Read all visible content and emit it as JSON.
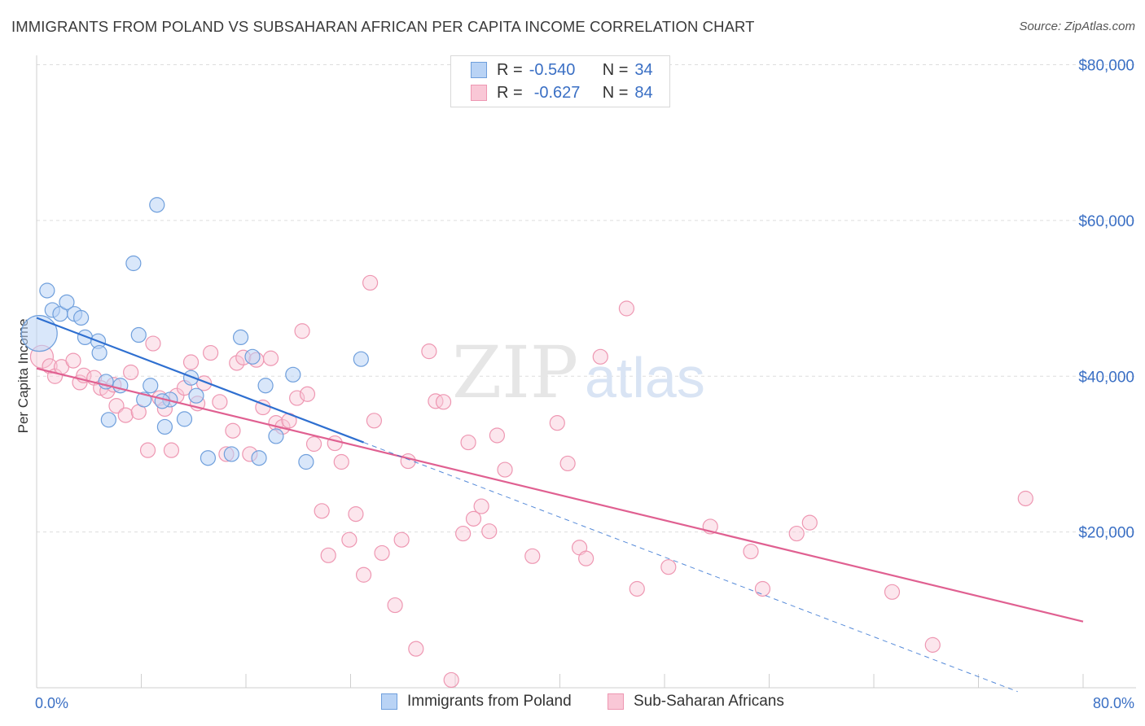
{
  "header": {
    "title": "IMMIGRANTS FROM POLAND VS SUBSAHARAN AFRICAN PER CAPITA INCOME CORRELATION CHART",
    "source": "Source: ZipAtlas.com"
  },
  "legend_top": {
    "rows": [
      {
        "r_label": "R =",
        "r_value": "-0.540",
        "n_label": "N =",
        "n_value": "34"
      },
      {
        "r_label": "R =",
        "r_value": "-0.627",
        "n_label": "N =",
        "n_value": "84"
      }
    ]
  },
  "legend_bottom": {
    "items": [
      "Immigrants from Poland",
      "Sub-Saharan Africans"
    ]
  },
  "watermark": {
    "zip": "ZIP",
    "atlas": "atlas"
  },
  "colors": {
    "poland_fill": "#b9d3f5",
    "poland_stroke": "#6f9fdc",
    "poland_line": "#2e6fd0",
    "african_fill": "#f9c7d6",
    "african_stroke": "#ee97b2",
    "african_line": "#e06091",
    "axis_label": "#3a6fc4",
    "grid": "#dddddd"
  },
  "chart_data": {
    "type": "scatter",
    "title": "IMMIGRANTS FROM POLAND VS SUBSAHARAN AFRICAN PER CAPITA INCOME CORRELATION CHART",
    "xlabel": "",
    "ylabel": "Per Capita Income",
    "xlim": [
      0,
      80
    ],
    "ylim": [
      0,
      80000
    ],
    "x_tick_labels": [
      "0.0%",
      "80.0%"
    ],
    "y_ticks": [
      20000,
      40000,
      60000,
      80000
    ],
    "y_tick_labels": [
      "$20,000",
      "$40,000",
      "$60,000",
      "$80,000"
    ],
    "grid": "horizontal dashed",
    "legend_position": "top-center",
    "series": [
      {
        "name": "Immigrants from Poland",
        "r": -0.54,
        "n": 34,
        "points": [
          [
            0.2,
            45500
          ],
          [
            0.8,
            51000
          ],
          [
            1.2,
            48500
          ],
          [
            1.8,
            48000
          ],
          [
            2.3,
            49500
          ],
          [
            2.9,
            48000
          ],
          [
            3.4,
            47500
          ],
          [
            3.7,
            45000
          ],
          [
            4.7,
            44500
          ],
          [
            4.8,
            43000
          ],
          [
            5.3,
            39300
          ],
          [
            5.5,
            34400
          ],
          [
            6.4,
            38800
          ],
          [
            7.4,
            54500
          ],
          [
            7.8,
            45300
          ],
          [
            8.2,
            37000
          ],
          [
            8.7,
            38800
          ],
          [
            9.2,
            62000
          ],
          [
            9.8,
            33500
          ],
          [
            10.2,
            37000
          ],
          [
            11.3,
            34500
          ],
          [
            11.8,
            39800
          ],
          [
            12.2,
            37500
          ],
          [
            13.1,
            29500
          ],
          [
            14.9,
            30000
          ],
          [
            15.6,
            45000
          ],
          [
            16.5,
            42500
          ],
          [
            17.0,
            29500
          ],
          [
            17.5,
            38800
          ],
          [
            18.3,
            32300
          ],
          [
            19.6,
            40200
          ],
          [
            20.6,
            29000
          ],
          [
            24.8,
            42200
          ],
          [
            9.6,
            36800
          ]
        ],
        "trend": {
          "x": [
            0,
            25
          ],
          "y": [
            47500,
            31500
          ]
        },
        "trend_extension": {
          "x": [
            25,
            75
          ],
          "y": [
            31500,
            -500
          ]
        }
      },
      {
        "name": "Sub-Saharan Africans",
        "r": -0.627,
        "n": 84,
        "points": [
          [
            0.4,
            42500
          ],
          [
            1.0,
            41300
          ],
          [
            1.4,
            40000
          ],
          [
            1.9,
            41200
          ],
          [
            2.8,
            42000
          ],
          [
            3.3,
            39200
          ],
          [
            3.6,
            40100
          ],
          [
            4.4,
            39800
          ],
          [
            4.9,
            38500
          ],
          [
            5.4,
            38100
          ],
          [
            5.9,
            38900
          ],
          [
            6.1,
            36200
          ],
          [
            6.8,
            35000
          ],
          [
            7.2,
            40500
          ],
          [
            7.8,
            35400
          ],
          [
            8.5,
            30500
          ],
          [
            8.9,
            44200
          ],
          [
            9.4,
            37200
          ],
          [
            9.8,
            35800
          ],
          [
            10.3,
            30500
          ],
          [
            10.7,
            37500
          ],
          [
            11.3,
            38500
          ],
          [
            11.8,
            41800
          ],
          [
            12.3,
            36500
          ],
          [
            12.8,
            39100
          ],
          [
            13.3,
            43000
          ],
          [
            14.0,
            36700
          ],
          [
            14.5,
            30000
          ],
          [
            15.0,
            33000
          ],
          [
            15.3,
            41700
          ],
          [
            15.8,
            42400
          ],
          [
            16.3,
            30000
          ],
          [
            16.8,
            42100
          ],
          [
            17.3,
            36000
          ],
          [
            17.9,
            42300
          ],
          [
            18.3,
            34000
          ],
          [
            18.8,
            33500
          ],
          [
            19.3,
            34300
          ],
          [
            19.9,
            37200
          ],
          [
            20.3,
            45800
          ],
          [
            20.7,
            37700
          ],
          [
            21.2,
            31300
          ],
          [
            21.8,
            22700
          ],
          [
            22.3,
            17000
          ],
          [
            22.8,
            31400
          ],
          [
            23.3,
            29000
          ],
          [
            23.9,
            19000
          ],
          [
            24.4,
            22300
          ],
          [
            25.0,
            14500
          ],
          [
            25.5,
            52000
          ],
          [
            25.8,
            34300
          ],
          [
            26.4,
            17300
          ],
          [
            27.4,
            10600
          ],
          [
            27.9,
            19000
          ],
          [
            28.4,
            29100
          ],
          [
            29.0,
            5000
          ],
          [
            30.0,
            43200
          ],
          [
            30.5,
            36800
          ],
          [
            31.1,
            36700
          ],
          [
            31.7,
            1000
          ],
          [
            32.6,
            19800
          ],
          [
            33.0,
            31500
          ],
          [
            33.4,
            21700
          ],
          [
            34.0,
            23300
          ],
          [
            34.6,
            20100
          ],
          [
            35.2,
            32400
          ],
          [
            35.8,
            28000
          ],
          [
            37.9,
            16900
          ],
          [
            39.8,
            34000
          ],
          [
            40.6,
            28800
          ],
          [
            41.5,
            18000
          ],
          [
            42.0,
            16600
          ],
          [
            43.1,
            42500
          ],
          [
            45.1,
            48700
          ],
          [
            45.9,
            12700
          ],
          [
            48.3,
            15500
          ],
          [
            51.5,
            20700
          ],
          [
            54.6,
            17500
          ],
          [
            55.5,
            12700
          ],
          [
            58.1,
            19800
          ],
          [
            59.1,
            21200
          ],
          [
            65.4,
            12300
          ],
          [
            68.5,
            5500
          ],
          [
            75.6,
            24300
          ]
        ],
        "trend": {
          "x": [
            0,
            80
          ],
          "y": [
            41000,
            8500
          ]
        }
      }
    ]
  }
}
